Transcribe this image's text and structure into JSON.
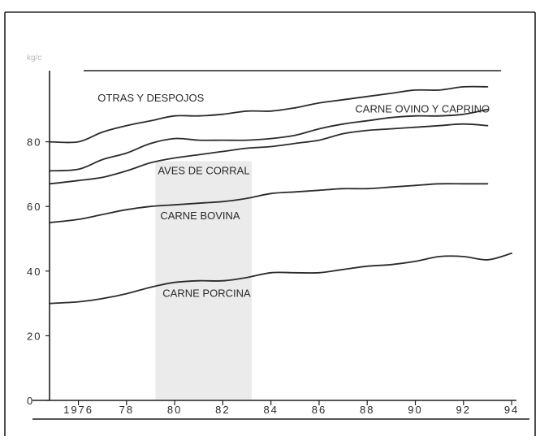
{
  "chart_data": {
    "type": "line",
    "ylabel": "kg/c",
    "x_tick_labels": [
      "1976",
      "78",
      "80",
      "82",
      "84",
      "86",
      "88",
      "90",
      "92",
      "94"
    ],
    "x_ticks": [
      1976,
      1978,
      1980,
      1982,
      1984,
      1986,
      1988,
      1990,
      1992,
      1994
    ],
    "y_tick_labels": [
      "0",
      "20",
      "40",
      "60",
      "80"
    ],
    "y_ticks": [
      0,
      20,
      40,
      60,
      80
    ],
    "xlim": [
      1974.8,
      1994.2
    ],
    "ylim": [
      0,
      102
    ],
    "stacked": true,
    "shaded_period": [
      1979.2,
      1983.2
    ],
    "shade_color": "#ebebeb",
    "line_color": "#2b2b2b",
    "grid": false,
    "series": [
      {
        "name": "CARNE PORCINA",
        "x": [
          1974.8,
          1976,
          1977,
          1978,
          1979,
          1980,
          1981,
          1982,
          1983,
          1984,
          1985,
          1986,
          1987,
          1988,
          1989,
          1990,
          1991,
          1992,
          1993,
          1994
        ],
        "y": [
          30,
          30.5,
          31.5,
          33,
          35,
          36.5,
          37,
          37,
          38,
          39.5,
          39.5,
          39.5,
          40.5,
          41.5,
          42,
          43,
          44.5,
          44.5,
          43.5,
          45.5
        ],
        "label_x": 1979.5,
        "label_y": 32
      },
      {
        "name": "CARNE BOVINA",
        "x": [
          1974.8,
          1976,
          1977,
          1978,
          1979,
          1980,
          1981,
          1982,
          1983,
          1984,
          1985,
          1986,
          1987,
          1988,
          1989,
          1990,
          1991,
          1992,
          1993
        ],
        "y": [
          55,
          56,
          57.5,
          59,
          60,
          60.5,
          61,
          61.5,
          62.5,
          64,
          64.5,
          65,
          65.5,
          65.5,
          66,
          66.5,
          67,
          67,
          67
        ],
        "label_x": 1979.4,
        "label_y": 56
      },
      {
        "name": "AVES DE CORRAL",
        "x": [
          1974.8,
          1976,
          1977,
          1978,
          1979,
          1980,
          1981,
          1982,
          1983,
          1984,
          1985,
          1986,
          1987,
          1988,
          1989,
          1990,
          1991,
          1992,
          1993
        ],
        "y": [
          67,
          68,
          69,
          71,
          73.5,
          75,
          76,
          77,
          78,
          78.5,
          79.5,
          80.5,
          82.5,
          83.5,
          84,
          84.5,
          85,
          85.5,
          85
        ],
        "label_x": 1979.3,
        "label_y": 70
      },
      {
        "name": "CARNE OVINO Y CAPRINO",
        "x": [
          1974.8,
          1976,
          1977,
          1978,
          1979,
          1980,
          1981,
          1982,
          1983,
          1984,
          1985,
          1986,
          1987,
          1988,
          1989,
          1990,
          1991,
          1992,
          1993
        ],
        "y": [
          71,
          71.5,
          74.5,
          76.5,
          79.5,
          81,
          80.5,
          80.5,
          80.5,
          81,
          82,
          84,
          85.5,
          86.5,
          87.5,
          88,
          88,
          88.5,
          90
        ],
        "label_x": 1987.5,
        "label_y": 89
      },
      {
        "name": "OTRAS Y DESPOJOS",
        "x": [
          1974.8,
          1976,
          1977,
          1978,
          1979,
          1980,
          1981,
          1982,
          1983,
          1984,
          1985,
          1986,
          1987,
          1988,
          1989,
          1990,
          1991,
          1992,
          1993
        ],
        "y": [
          80,
          80,
          83,
          85,
          86.5,
          88,
          88,
          88.5,
          89.5,
          89.5,
          90.5,
          92,
          93,
          94,
          95,
          96,
          96,
          97,
          97
        ],
        "label_x": 1976.8,
        "label_y": 92.5
      }
    ]
  }
}
